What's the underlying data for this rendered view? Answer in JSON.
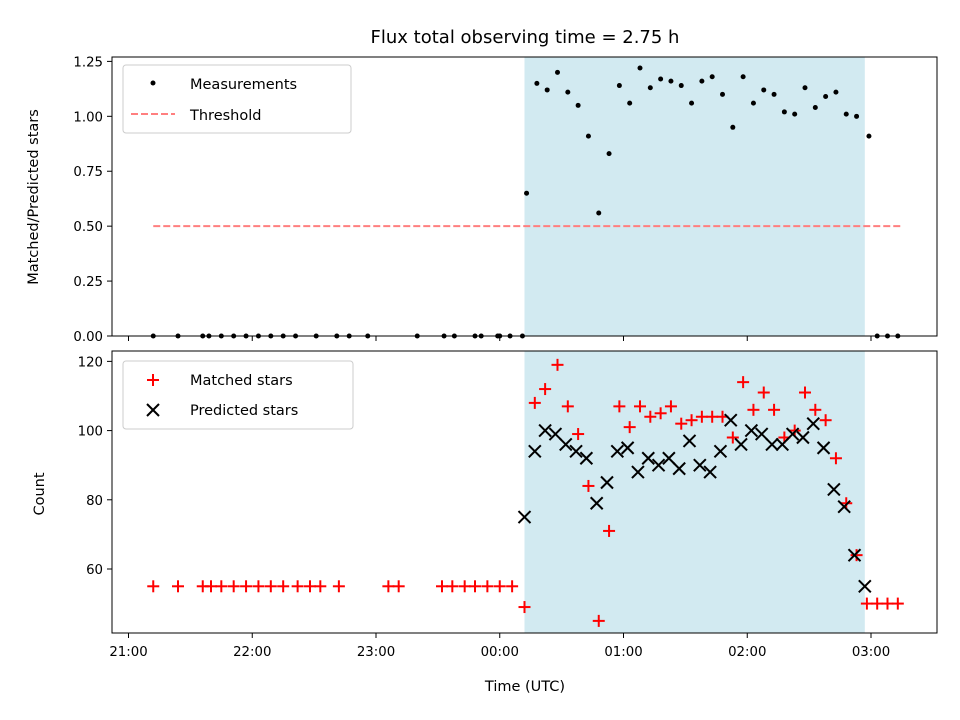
{
  "chart_data": [
    {
      "type": "scatter",
      "title": "Flux total observing time = 2.75 h",
      "xlabel": "",
      "ylabel": "Matched/Predicted stars",
      "ylim": [
        0,
        1.27
      ],
      "yticks": [
        "0.00",
        "0.25",
        "0.50",
        "0.75",
        "1.00",
        "1.25"
      ],
      "ytick_values": [
        0,
        0.25,
        0.5,
        0.75,
        1.0,
        1.25
      ],
      "xlim": [
        "21:00",
        "03:32"
      ],
      "highlight_span": [
        "00:12",
        "02:57"
      ],
      "highlight_color": "#add8e6",
      "legend": {
        "placement": "upper left",
        "entries": [
          "Measurements",
          "Threshold"
        ]
      },
      "threshold": {
        "name": "Threshold",
        "value": 0.5,
        "x": [
          "21:12",
          "03:15"
        ],
        "color": "#ff7f7f"
      },
      "series": [
        {
          "name": "Measurements",
          "marker": "dot",
          "color": "#000000",
          "x": [
            "21:12",
            "21:24",
            "21:36",
            "21:39",
            "21:45",
            "21:51",
            "21:57",
            "22:03",
            "22:09",
            "22:15",
            "22:21",
            "22:31",
            "22:41",
            "22:47",
            "22:56",
            "23:20",
            "23:48",
            "23:51",
            "23:33",
            "23:38",
            "23:59",
            "00:05",
            "00:11",
            "00:00",
            "00:13",
            "00:18",
            "00:23",
            "00:28",
            "00:33",
            "00:38",
            "00:43",
            "00:48",
            "00:53",
            "00:58",
            "01:03",
            "01:08",
            "01:13",
            "01:18",
            "01:23",
            "01:28",
            "01:33",
            "01:38",
            "01:43",
            "01:48",
            "01:53",
            "01:58",
            "02:03",
            "02:08",
            "02:13",
            "02:18",
            "02:23",
            "02:28",
            "02:33",
            "02:38",
            "02:43",
            "02:48",
            "02:53",
            "02:59",
            "03:03",
            "03:08",
            "03:13"
          ],
          "y": [
            0,
            0,
            0,
            0,
            0,
            0,
            0,
            0,
            0,
            0,
            0,
            0,
            0,
            0,
            0,
            0,
            0,
            0,
            0,
            0,
            0,
            0,
            0,
            0,
            0.65,
            1.15,
            1.12,
            1.2,
            1.11,
            1.05,
            0.91,
            0.56,
            0.83,
            1.14,
            1.06,
            1.22,
            1.13,
            1.17,
            1.16,
            1.14,
            1.06,
            1.16,
            1.18,
            1.1,
            0.95,
            1.18,
            1.06,
            1.12,
            1.1,
            1.02,
            1.01,
            1.13,
            1.04,
            1.09,
            1.11,
            1.01,
            1.0,
            0.91,
            0,
            0,
            0
          ]
        }
      ]
    },
    {
      "type": "scatter",
      "title": "",
      "xlabel": "Time (UTC)",
      "ylabel": "Count",
      "ylim": [
        41.5,
        123
      ],
      "yticks": [
        "60",
        "80",
        "100",
        "120"
      ],
      "ytick_values": [
        60,
        80,
        100,
        120
      ],
      "xlim": [
        "21:00",
        "03:32"
      ],
      "xticks": [
        "21:00",
        "22:00",
        "23:00",
        "00:00",
        "01:00",
        "02:00",
        "03:00"
      ],
      "highlight_span": [
        "00:12",
        "02:57"
      ],
      "highlight_color": "#add8e6",
      "legend": {
        "placement": "upper left",
        "entries": [
          "Matched stars",
          "Predicted stars"
        ]
      },
      "series": [
        {
          "name": "Matched stars",
          "marker": "plus",
          "color": "#ff0000",
          "x": [
            "21:12",
            "21:24",
            "21:36",
            "21:40",
            "21:45",
            "21:51",
            "21:57",
            "22:03",
            "22:09",
            "22:15",
            "22:22",
            "22:28",
            "22:33",
            "22:42",
            "23:06",
            "23:11",
            "23:32",
            "23:37",
            "23:43",
            "23:48",
            "23:54",
            "00:00",
            "00:06",
            "00:12",
            "00:17",
            "00:22",
            "00:28",
            "00:33",
            "00:38",
            "00:43",
            "00:48",
            "00:53",
            "00:58",
            "01:03",
            "01:08",
            "01:13",
            "01:18",
            "01:23",
            "01:28",
            "01:33",
            "01:38",
            "01:43",
            "01:48",
            "01:53",
            "01:58",
            "02:03",
            "02:08",
            "02:13",
            "02:18",
            "02:23",
            "02:28",
            "02:33",
            "02:38",
            "02:43",
            "02:48",
            "02:53",
            "02:58",
            "03:03",
            "03:08",
            "03:13"
          ],
          "y": [
            55,
            55,
            55,
            55,
            55,
            55,
            55,
            55,
            55,
            55,
            55,
            55,
            55,
            55,
            55,
            55,
            55,
            55,
            55,
            55,
            55,
            55,
            55,
            49,
            108,
            112,
            119,
            107,
            99,
            84,
            45,
            71,
            107,
            101,
            107,
            104,
            105,
            107,
            102,
            103,
            104,
            104,
            104,
            98,
            114,
            106,
            111,
            106,
            98,
            100,
            111,
            106,
            103,
            92,
            79,
            64,
            50,
            50,
            50,
            50
          ]
        },
        {
          "name": "Predicted stars",
          "marker": "x",
          "color": "#000000",
          "x": [
            "00:12",
            "00:17",
            "00:22",
            "00:27",
            "00:32",
            "00:37",
            "00:42",
            "00:47",
            "00:52",
            "00:57",
            "01:02",
            "01:07",
            "01:12",
            "01:17",
            "01:22",
            "01:27",
            "01:32",
            "01:37",
            "01:42",
            "01:47",
            "01:52",
            "01:57",
            "02:02",
            "02:07",
            "02:12",
            "02:17",
            "02:22",
            "02:27",
            "02:32",
            "02:37",
            "02:42",
            "02:47",
            "02:52",
            "02:57"
          ],
          "y": [
            75,
            94,
            100,
            99,
            96,
            94,
            92,
            79,
            85,
            94,
            95,
            88,
            92,
            90,
            92,
            89,
            97,
            90,
            88,
            94,
            103,
            96,
            100,
            99,
            96,
            96,
            99,
            98,
            102,
            95,
            83,
            78,
            64,
            55
          ]
        }
      ]
    }
  ]
}
